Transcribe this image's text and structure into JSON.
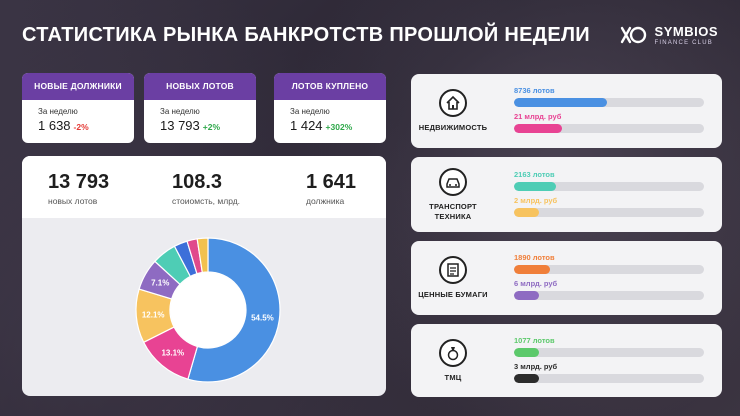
{
  "header": {
    "title": "СТАТИСТИКА РЫНКА БАНКРОТСТВ ПРОШЛОЙ НЕДЕЛИ",
    "logo_name": "SYMBIOS",
    "logo_sub": "FINANCE CLUB"
  },
  "kpis": [
    {
      "title": "НОВЫЕ ДОЛЖНИКИ",
      "period": "За неделю",
      "value": "1 638",
      "change": "-2%",
      "trend": "down"
    },
    {
      "title": "НОВЫХ ЛОТОВ",
      "period": "За неделю",
      "value": "13 793",
      "change": "+2%",
      "trend": "up"
    },
    {
      "title": "ЛОТОВ КУПЛЕНО",
      "period": "За неделю",
      "value": "1 424",
      "change": "+302%",
      "trend": "up"
    }
  ],
  "stats": [
    {
      "value": "13 793",
      "label": "новых лотов"
    },
    {
      "value": "108.3",
      "label": "стоиомсть, млрд."
    },
    {
      "value": "1 641",
      "label": "должника"
    }
  ],
  "chart_data": {
    "type": "pie",
    "donut": true,
    "slices": [
      {
        "value": 54.5,
        "label": "54.5%",
        "color": "#4a90e2"
      },
      {
        "value": 13.1,
        "label": "13.1%",
        "color": "#e84393"
      },
      {
        "value": 12.1,
        "label": "12.1%",
        "color": "#f7c35f"
      },
      {
        "value": 7.1,
        "label": "7.1%",
        "color": "#8e6bc2"
      },
      {
        "value": 5.5,
        "label": "",
        "color": "#4ecdb5"
      },
      {
        "value": 3.0,
        "label": "",
        "color": "#3d6fd9"
      },
      {
        "value": 2.3,
        "label": "",
        "color": "#e04a8c"
      },
      {
        "value": 2.4,
        "label": "",
        "color": "#f2c14e"
      }
    ]
  },
  "categories": [
    {
      "label_lines": [
        "НЕДВИЖИМОСТЬ"
      ],
      "icon": "house-icon",
      "bars": [
        {
          "label": "8736 лотов",
          "fraction": 0.49,
          "color": "#4a90e2"
        },
        {
          "label": "21 млрд. руб",
          "fraction": 0.25,
          "color": "#e84393"
        }
      ]
    },
    {
      "label_lines": [
        "ТРАНСПОРТ",
        "ТЕХНИКА"
      ],
      "icon": "car-icon",
      "bars": [
        {
          "label": "2163 лотов",
          "fraction": 0.22,
          "color": "#4ecdb5"
        },
        {
          "label": "2 млрд. руб",
          "fraction": 0.13,
          "color": "#f7c35f"
        }
      ]
    },
    {
      "label_lines": [
        "ЦЕННЫЕ БУМАГИ"
      ],
      "icon": "document-icon",
      "bars": [
        {
          "label": "1890 лотов",
          "fraction": 0.19,
          "color": "#f07f3a"
        },
        {
          "label": "6 млрд. руб",
          "fraction": 0.13,
          "color": "#8e6bc2"
        }
      ]
    },
    {
      "label_lines": [
        "ТМЦ"
      ],
      "icon": "ring-icon",
      "bars": [
        {
          "label": "1077 лотов",
          "fraction": 0.13,
          "color": "#5cc96b"
        },
        {
          "label": "3 млрд. руб",
          "fraction": 0.13,
          "color": "#2c2c2c"
        }
      ]
    }
  ]
}
